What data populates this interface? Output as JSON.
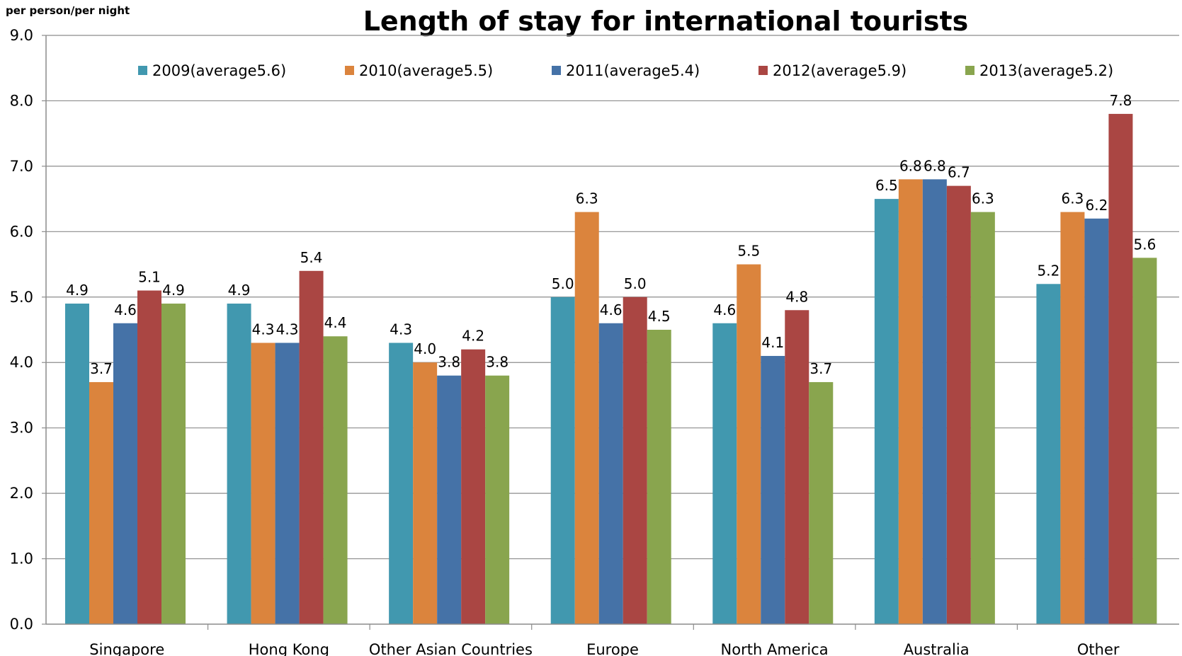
{
  "chart_data": {
    "type": "bar",
    "title": "Length of stay for international tourists",
    "ylabel": "per person/per night",
    "xlabel": "",
    "ylim": [
      0,
      9
    ],
    "yticks": [
      "0.0",
      "1.0",
      "2.0",
      "3.0",
      "4.0",
      "5.0",
      "6.0",
      "7.0",
      "8.0",
      "9.0"
    ],
    "grid": true,
    "legend_position": "top",
    "categories": [
      "Singapore",
      "Hong Kong",
      "Other Asian Countries",
      "Europe",
      "North America",
      "Australia",
      "Other"
    ],
    "series": [
      {
        "name": "2009(average5.6)",
        "color": "#4198AF",
        "values": [
          4.9,
          4.9,
          4.3,
          5.0,
          4.6,
          6.5,
          5.2
        ]
      },
      {
        "name": "2010(average5.5)",
        "color": "#DB843D",
        "values": [
          3.7,
          4.3,
          4.0,
          6.3,
          5.5,
          6.8,
          6.3
        ]
      },
      {
        "name": "2011(average5.4)",
        "color": "#4572A7",
        "values": [
          4.6,
          4.3,
          3.8,
          4.6,
          4.1,
          6.8,
          6.2
        ]
      },
      {
        "name": "2012(average5.9)",
        "color": "#AA4643",
        "values": [
          5.1,
          5.4,
          4.2,
          5.0,
          4.8,
          6.7,
          7.8
        ]
      },
      {
        "name": "2013(average5.2)",
        "color": "#89A54E",
        "values": [
          4.9,
          4.4,
          3.8,
          4.5,
          3.7,
          6.3,
          5.6
        ]
      }
    ]
  }
}
